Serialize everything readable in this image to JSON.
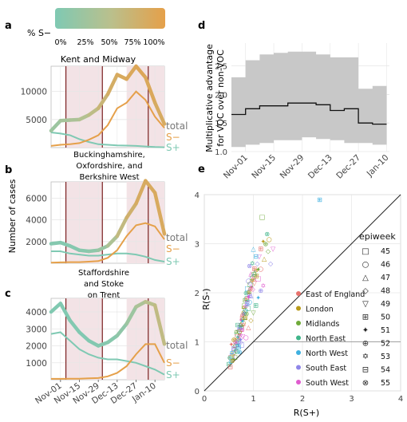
{
  "panel_letters": {
    "a": "a",
    "b": "b",
    "c": "c",
    "d": "d",
    "e": "e"
  },
  "colorbar": {
    "label": "% S−",
    "ticks": [
      "0%",
      "25%",
      "50%",
      "75%",
      "100%"
    ],
    "colors": [
      "#7fc9b3",
      "#b9c08d",
      "#e5a04a"
    ]
  },
  "colors": {
    "s_pos": "#7fc9b3",
    "s_neg": "#e5a04a",
    "lockdown_line": "#7a1f1f",
    "shade": "#f3e3e6",
    "grid": "#e6e6e6",
    "ci": "#c8c8c8"
  },
  "shared_x_ticks": [
    "Nov-01",
    "Nov-15",
    "Nov-29",
    "Dec-13",
    "Dec-27",
    "Jan-10"
  ],
  "shared_ylabel": "Number of cases",
  "chart_data": [
    {
      "type": "line",
      "panel": "a",
      "title": "Kent and Midway",
      "x": [
        "Oct-25",
        "Nov-01",
        "Nov-08",
        "Nov-15",
        "Nov-22",
        "Nov-29",
        "Dec-06",
        "Dec-13",
        "Dec-20",
        "Dec-27",
        "Jan-03",
        "Jan-10",
        "Jan-17"
      ],
      "ylim": [
        0,
        14500
      ],
      "yticks": [
        5000,
        10000
      ],
      "series": [
        {
          "name": "total",
          "values": [
            3000,
            4800,
            4900,
            5000,
            5800,
            7000,
            9500,
            13000,
            12200,
            14500,
            12500,
            8000,
            4200
          ],
          "frac_s_neg": [
            0.2,
            0.3,
            0.35,
            0.4,
            0.5,
            0.6,
            0.75,
            0.85,
            0.85,
            0.9,
            0.9,
            0.85,
            0.8
          ]
        },
        {
          "name": "S−",
          "values": [
            300,
            500,
            600,
            800,
            1400,
            2200,
            4000,
            7000,
            8000,
            10000,
            8500,
            5500,
            3500
          ]
        },
        {
          "name": "S+",
          "values": [
            2700,
            2500,
            2200,
            1500,
            1000,
            600,
            500,
            400,
            350,
            300,
            200,
            100,
            50
          ]
        }
      ],
      "lockdown_lines": [
        "Nov-05",
        "Dec-02",
        "Jan-05"
      ],
      "shaded": [
        [
          "Nov-05",
          "Dec-02"
        ],
        [
          "Dec-20",
          "Jan-17"
        ]
      ]
    },
    {
      "type": "line",
      "panel": "b",
      "title": "Buckinghamshire, Oxfordshire, and Berkshire West",
      "x": [
        "Oct-25",
        "Nov-01",
        "Nov-08",
        "Nov-15",
        "Nov-22",
        "Nov-29",
        "Dec-06",
        "Dec-13",
        "Dec-20",
        "Dec-27",
        "Jan-03",
        "Jan-10",
        "Jan-17"
      ],
      "ylim": [
        0,
        7500
      ],
      "yticks": [
        2000,
        4000,
        6000
      ],
      "series": [
        {
          "name": "total",
          "values": [
            1800,
            1900,
            1600,
            1200,
            1100,
            1200,
            1600,
            2500,
            4200,
            5500,
            7600,
            6500,
            2700
          ],
          "frac_s_neg": [
            0.05,
            0.05,
            0.05,
            0.05,
            0.1,
            0.15,
            0.3,
            0.5,
            0.7,
            0.8,
            0.85,
            0.85,
            0.85
          ]
        },
        {
          "name": "S−",
          "values": [
            50,
            80,
            100,
            100,
            150,
            200,
            500,
            1200,
            2500,
            3500,
            3700,
            3400,
            2200
          ]
        },
        {
          "name": "S+",
          "values": [
            1100,
            1100,
            900,
            800,
            700,
            700,
            800,
            900,
            900,
            800,
            600,
            300,
            150
          ]
        }
      ],
      "lockdown_lines": [
        "Nov-05",
        "Dec-02",
        "Jan-05"
      ],
      "shaded": [
        [
          "Nov-05",
          "Dec-02"
        ],
        [
          "Dec-20",
          "Jan-17"
        ]
      ]
    },
    {
      "type": "line",
      "panel": "c",
      "title": "Staffordshire and Stoke on Trent",
      "x": [
        "Oct-25",
        "Nov-01",
        "Nov-08",
        "Nov-15",
        "Nov-22",
        "Nov-29",
        "Dec-06",
        "Dec-13",
        "Dec-20",
        "Dec-27",
        "Jan-03",
        "Jan-10",
        "Jan-17"
      ],
      "ylim": [
        0,
        4800
      ],
      "yticks": [
        1000,
        2000,
        3000,
        4000
      ],
      "series": [
        {
          "name": "total",
          "values": [
            4000,
            4500,
            3500,
            2800,
            2300,
            2000,
            2200,
            2600,
            3300,
            4300,
            4600,
            4400,
            2100
          ],
          "frac_s_neg": [
            0.02,
            0.02,
            0.02,
            0.03,
            0.03,
            0.04,
            0.06,
            0.1,
            0.2,
            0.3,
            0.45,
            0.55,
            0.6
          ]
        },
        {
          "name": "S−",
          "values": [
            50,
            50,
            60,
            60,
            80,
            100,
            200,
            400,
            800,
            1500,
            2100,
            2100,
            1000
          ]
        },
        {
          "name": "S+",
          "values": [
            2700,
            2800,
            2300,
            1800,
            1500,
            1300,
            1200,
            1200,
            1100,
            1000,
            800,
            600,
            300
          ]
        }
      ],
      "lockdown_lines": [
        "Nov-05",
        "Dec-02",
        "Jan-05"
      ],
      "shaded": [
        [
          "Nov-05",
          "Dec-02"
        ],
        [
          "Dec-20",
          "Jan-17"
        ]
      ]
    },
    {
      "type": "line",
      "panel": "d",
      "title": "",
      "ylabel": "Multiplicative advantage for VOC over non-VOC",
      "x_ticks": [
        "Nov-01",
        "Nov-15",
        "Nov-29",
        "Dec-13",
        "Dec-27",
        "Jan-10"
      ],
      "ylim": [
        1.0,
        2.9
      ],
      "yticks": [
        1.0,
        1.5,
        2.0,
        2.5
      ],
      "y_tick_labels": [
        "1.0",
        "1.5",
        "2.0",
        "2.5"
      ],
      "steps": [
        {
          "start": "Oct-25",
          "end": "Nov-01",
          "est": 1.65,
          "lo": 1.08,
          "hi": 2.3
        },
        {
          "start": "Nov-01",
          "end": "Nov-08",
          "est": 1.75,
          "lo": 1.12,
          "hi": 2.6
        },
        {
          "start": "Nov-08",
          "end": "Nov-15",
          "est": 1.8,
          "lo": 1.15,
          "hi": 2.7
        },
        {
          "start": "Nov-15",
          "end": "Nov-22",
          "est": 1.8,
          "lo": 1.2,
          "hi": 2.73
        },
        {
          "start": "Nov-22",
          "end": "Nov-29",
          "est": 1.85,
          "lo": 1.2,
          "hi": 2.75
        },
        {
          "start": "Nov-29",
          "end": "Dec-06",
          "est": 1.85,
          "lo": 1.25,
          "hi": 2.75
        },
        {
          "start": "Dec-06",
          "end": "Dec-13",
          "est": 1.82,
          "lo": 1.22,
          "hi": 2.7
        },
        {
          "start": "Dec-13",
          "end": "Dec-20",
          "est": 1.72,
          "lo": 1.2,
          "hi": 2.65
        },
        {
          "start": "Dec-20",
          "end": "Dec-27",
          "est": 1.75,
          "lo": 1.15,
          "hi": 2.65
        },
        {
          "start": "Dec-27",
          "end": "Jan-03",
          "est": 1.5,
          "lo": 1.15,
          "hi": 2.1
        },
        {
          "start": "Jan-03",
          "end": "Jan-10",
          "est": 1.48,
          "lo": 1.12,
          "hi": 2.15
        }
      ]
    },
    {
      "type": "scatter",
      "panel": "e",
      "title": "",
      "xlabel": "R(S+)",
      "ylabel": "R(S-)",
      "xlim": [
        0,
        4
      ],
      "ylim": [
        0,
        4
      ],
      "xticks": [
        0,
        1,
        2,
        3,
        4
      ],
      "yticks": [
        0,
        1,
        2,
        3,
        4
      ],
      "legend_title": "epiweek",
      "epiweeks": [
        "45",
        "46",
        "47",
        "48",
        "49",
        "50",
        "51",
        "52",
        "53",
        "54",
        "55"
      ],
      "epiweek_symbols": [
        "□",
        "○",
        "△",
        "◇",
        "▽",
        "⊞",
        "✦",
        "⊕",
        "✡",
        "⊟",
        "⊗"
      ],
      "regions": [
        {
          "name": "East of England",
          "color": "#e7726d"
        },
        {
          "name": "London",
          "color": "#b89a1a"
        },
        {
          "name": "Midlands",
          "color": "#6faa3a"
        },
        {
          "name": "North East",
          "color": "#40b58a"
        },
        {
          "name": "North West",
          "color": "#3fb0e0"
        },
        {
          "name": "South East",
          "color": "#8f86e8"
        },
        {
          "name": "South West",
          "color": "#e05ccf"
        }
      ],
      "points": [
        [
          0.55,
          0.7,
          0,
          0
        ],
        [
          0.6,
          0.8,
          1,
          1
        ],
        [
          0.62,
          0.95,
          2,
          2
        ],
        [
          0.68,
          1.05,
          3,
          3
        ],
        [
          0.7,
          1.2,
          4,
          4
        ],
        [
          0.72,
          1.3,
          5,
          5
        ],
        [
          0.75,
          1.45,
          6,
          6
        ],
        [
          0.78,
          1.55,
          0,
          7
        ],
        [
          0.8,
          1.7,
          1,
          8
        ],
        [
          0.83,
          1.85,
          2,
          9
        ],
        [
          0.85,
          2.0,
          3,
          10
        ],
        [
          0.88,
          2.1,
          4,
          0
        ],
        [
          0.9,
          2.25,
          5,
          1
        ],
        [
          0.95,
          2.4,
          6,
          2
        ],
        [
          0.58,
          0.75,
          1,
          3
        ],
        [
          0.63,
          0.9,
          2,
          4
        ],
        [
          0.66,
          1.0,
          3,
          5
        ],
        [
          0.69,
          1.1,
          4,
          6
        ],
        [
          0.71,
          1.25,
          5,
          7
        ],
        [
          0.74,
          1.35,
          6,
          8
        ],
        [
          0.77,
          1.5,
          0,
          9
        ],
        [
          0.8,
          1.6,
          1,
          10
        ],
        [
          0.82,
          1.75,
          2,
          0
        ],
        [
          0.86,
          1.9,
          3,
          1
        ],
        [
          0.9,
          2.05,
          4,
          2
        ],
        [
          0.93,
          2.2,
          5,
          3
        ],
        [
          0.97,
          2.35,
          6,
          4
        ],
        [
          1.02,
          2.5,
          0,
          5
        ],
        [
          0.6,
          0.65,
          2,
          6
        ],
        [
          0.64,
          0.82,
          3,
          7
        ],
        [
          0.67,
          0.93,
          4,
          8
        ],
        [
          0.7,
          1.02,
          5,
          9
        ],
        [
          0.73,
          1.15,
          6,
          10
        ],
        [
          0.76,
          1.28,
          0,
          0
        ],
        [
          0.79,
          1.4,
          1,
          1
        ],
        [
          0.82,
          1.52,
          2,
          2
        ],
        [
          0.85,
          1.65,
          3,
          3
        ],
        [
          0.88,
          1.8,
          4,
          4
        ],
        [
          0.92,
          1.95,
          5,
          5
        ],
        [
          0.96,
          2.12,
          6,
          6
        ],
        [
          1.0,
          2.28,
          0,
          7
        ],
        [
          1.05,
          2.45,
          1,
          8
        ],
        [
          0.5,
          0.55,
          3,
          9
        ],
        [
          0.54,
          0.6,
          4,
          10
        ],
        [
          0.57,
          0.72,
          5,
          0
        ],
        [
          0.61,
          0.85,
          6,
          1
        ],
        [
          0.65,
          0.97,
          0,
          2
        ],
        [
          0.68,
          1.08,
          1,
          3
        ],
        [
          0.72,
          1.18,
          2,
          4
        ],
        [
          0.75,
          1.32,
          3,
          5
        ],
        [
          0.78,
          1.42,
          4,
          6
        ],
        [
          0.81,
          1.58,
          5,
          7
        ],
        [
          0.84,
          1.72,
          6,
          8
        ],
        [
          0.87,
          1.88,
          0,
          9
        ],
        [
          0.91,
          2.02,
          1,
          10
        ],
        [
          0.94,
          2.18,
          2,
          0
        ],
        [
          0.98,
          2.32,
          3,
          1
        ],
        [
          1.03,
          2.42,
          4,
          2
        ],
        [
          1.08,
          2.6,
          5,
          3
        ],
        [
          1.12,
          2.75,
          6,
          4
        ],
        [
          1.15,
          2.9,
          0,
          5
        ],
        [
          1.2,
          3.05,
          1,
          6
        ],
        [
          1.25,
          3.0,
          2,
          7
        ],
        [
          0.98,
          2.6,
          3,
          8
        ],
        [
          1.05,
          2.75,
          4,
          9
        ],
        [
          0.92,
          2.55,
          5,
          10
        ],
        [
          1.1,
          2.3,
          6,
          0
        ],
        [
          1.15,
          2.5,
          0,
          1
        ],
        [
          1.22,
          2.7,
          1,
          2
        ],
        [
          1.3,
          2.85,
          2,
          3
        ],
        [
          0.66,
          1.15,
          3,
          4
        ],
        [
          0.7,
          0.9,
          4,
          5
        ],
        [
          0.74,
          1.05,
          5,
          6
        ],
        [
          0.77,
          1.25,
          6,
          7
        ],
        [
          0.8,
          1.35,
          0,
          8
        ],
        [
          0.83,
          1.5,
          1,
          9
        ],
        [
          0.86,
          1.58,
          2,
          10
        ],
        [
          0.89,
          1.7,
          3,
          0
        ],
        [
          0.92,
          1.82,
          4,
          1
        ],
        [
          0.95,
          1.95,
          5,
          2
        ],
        [
          0.99,
          2.08,
          6,
          3
        ],
        [
          1.02,
          2.2,
          0,
          4
        ],
        [
          1.06,
          2.35,
          1,
          5
        ],
        [
          1.1,
          2.48,
          2,
          6
        ],
        [
          0.52,
          0.68,
          3,
          7
        ],
        [
          0.56,
          0.78,
          4,
          8
        ],
        [
          0.6,
          0.88,
          5,
          9
        ],
        [
          0.63,
          1.0,
          6,
          10
        ],
        [
          0.67,
          1.12,
          0,
          0
        ],
        [
          0.71,
          1.22,
          1,
          1
        ],
        [
          0.75,
          1.38,
          2,
          2
        ],
        [
          0.79,
          1.48,
          3,
          3
        ],
        [
          0.83,
          1.62,
          4,
          4
        ],
        [
          0.87,
          1.78,
          5,
          5
        ],
        [
          0.9,
          1.92,
          6,
          6
        ],
        [
          0.94,
          2.08,
          0,
          7
        ],
        [
          0.97,
          2.25,
          1,
          8
        ],
        [
          1.01,
          2.38,
          2,
          9
        ],
        [
          1.28,
          3.2,
          3,
          10
        ],
        [
          1.18,
          3.55,
          2,
          0
        ],
        [
          1.32,
          3.1,
          1,
          1
        ],
        [
          1.0,
          2.9,
          4,
          2
        ],
        [
          1.35,
          2.6,
          5,
          3
        ],
        [
          1.4,
          2.9,
          6,
          4
        ],
        [
          2.35,
          3.9,
          4,
          5
        ],
        [
          0.55,
          0.95,
          0,
          6
        ],
        [
          0.6,
          1.05,
          1,
          7
        ],
        [
          0.65,
          1.2,
          2,
          8
        ],
        [
          0.68,
          1.35,
          3,
          9
        ],
        [
          0.72,
          0.8,
          4,
          10
        ],
        [
          0.76,
          0.95,
          5,
          0
        ],
        [
          0.85,
          1.1,
          6,
          1
        ],
        [
          0.9,
          1.3,
          0,
          2
        ],
        [
          0.95,
          1.45,
          1,
          3
        ],
        [
          1.0,
          1.6,
          2,
          4
        ],
        [
          1.05,
          1.75,
          3,
          5
        ],
        [
          1.1,
          1.9,
          4,
          6
        ],
        [
          1.15,
          2.05,
          5,
          7
        ],
        [
          1.2,
          2.15,
          6,
          8
        ],
        [
          0.53,
          0.5,
          0,
          9
        ],
        [
          0.57,
          0.62,
          1,
          10
        ],
        [
          0.62,
          0.7,
          2,
          0
        ],
        [
          0.66,
          0.82,
          3,
          1
        ],
        [
          0.7,
          0.92,
          4,
          2
        ],
        [
          0.74,
          1.0,
          5,
          3
        ],
        [
          0.78,
          1.12,
          6,
          4
        ]
      ]
    }
  ],
  "series_labels": {
    "total": "total",
    "s_neg": "S−",
    "s_pos": "S+"
  }
}
